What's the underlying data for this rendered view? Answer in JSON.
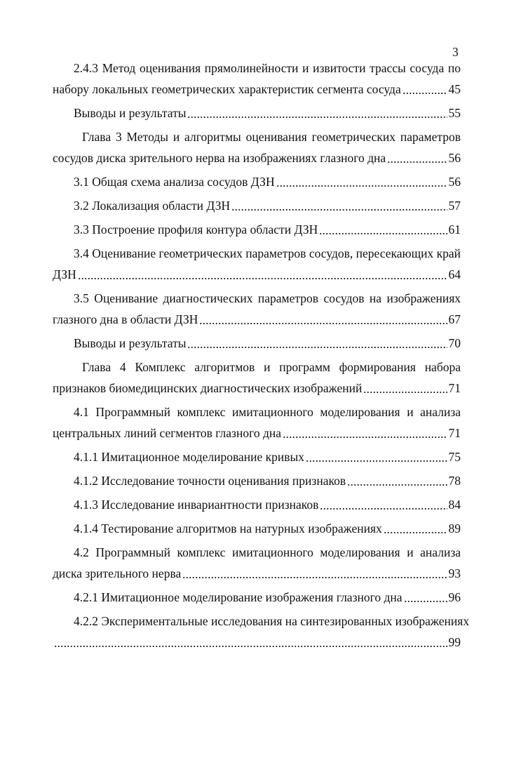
{
  "page_number": "3",
  "entries": [
    {
      "lines": [
        "2.4.3 Метод оценивания прямолинейности и извитости трассы сосуда по",
        "набору локальных геометрических характеристик сегмента сосуда"
      ],
      "page": 45
    },
    {
      "lines": [
        "Выводы и результаты"
      ],
      "page": 55
    },
    {
      "lines": [
        "Глава 3 Методы и алгоритмы оценивания геометрических параметров",
        "сосудов диска зрительного нерва на изображениях глазного дна"
      ],
      "page": 56
    },
    {
      "lines": [
        "3.1 Общая схема анализа сосудов ДЗН"
      ],
      "page": 56
    },
    {
      "lines": [
        "3.2 Локализация области ДЗН"
      ],
      "page": 57
    },
    {
      "lines": [
        "3.3 Построение профиля контура области ДЗН"
      ],
      "page": 61
    },
    {
      "lines": [
        "3.4 Оценивание геометрических параметров сосудов, пересекающих край",
        "ДЗН"
      ],
      "page": 64
    },
    {
      "lines": [
        "3.5 Оценивание диагностических параметров сосудов на изображениях",
        "глазного дна в области ДЗН"
      ],
      "page": 67
    },
    {
      "lines": [
        "Выводы и результаты"
      ],
      "page": 70
    },
    {
      "lines": [
        "Глава 4 Комплекс алгоритмов и программ формирования набора",
        "признаков биомедицинских диагностических изображений"
      ],
      "page": 71
    },
    {
      "lines": [
        "4.1 Программный комплекс имитационного моделирования и анализа",
        "центральных линий сегментов глазного дна"
      ],
      "page": 71
    },
    {
      "lines": [
        "4.1.1 Имитационное моделирование кривых"
      ],
      "page": 75
    },
    {
      "lines": [
        "4.1.2 Исследование точности оценивания признаков"
      ],
      "page": 78
    },
    {
      "lines": [
        "4.1.3 Исследование инвариантности признаков"
      ],
      "page": 84
    },
    {
      "lines": [
        "4.1.4 Тестирование алгоритмов на натурных изображениях"
      ],
      "page": 89
    },
    {
      "lines": [
        "4.2 Программный комплекс имитационного моделирования и анализа",
        "диска зрительного нерва"
      ],
      "page": 93
    },
    {
      "lines": [
        "4.2.1 Имитационное моделирование изображения глазного дна"
      ],
      "page": 96
    },
    {
      "lines": [
        "4.2.2 Экспериментальные исследования на синтезированных изображениях"
      ],
      "page": 99
    }
  ]
}
